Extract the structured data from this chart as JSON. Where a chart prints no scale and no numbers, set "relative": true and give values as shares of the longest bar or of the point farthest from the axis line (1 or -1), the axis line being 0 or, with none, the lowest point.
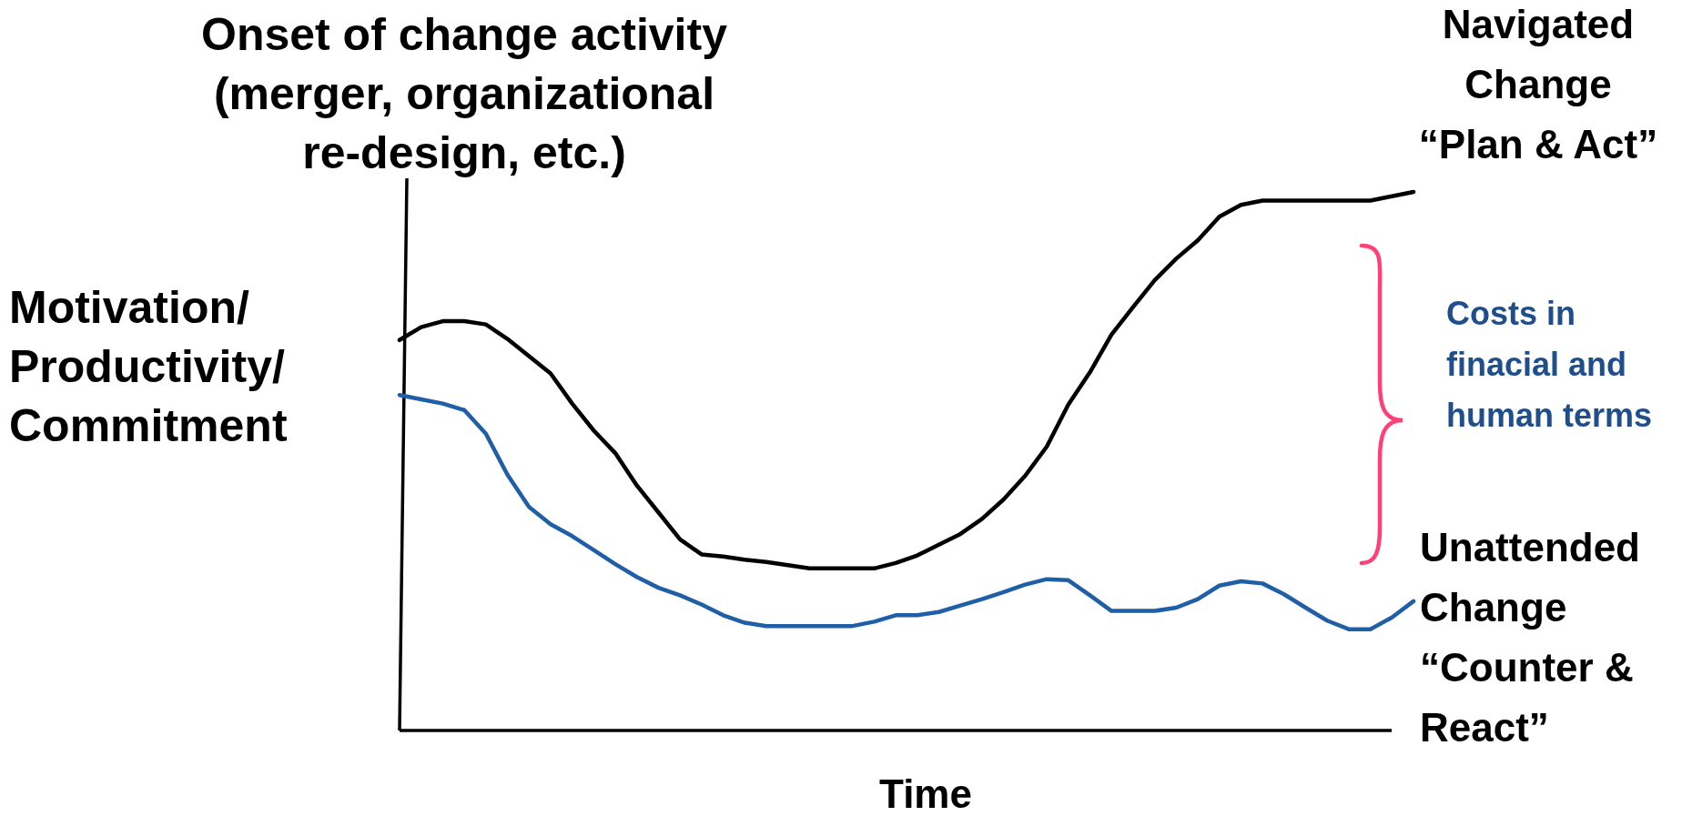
{
  "chart_data": {
    "type": "line",
    "relative": true,
    "xlabel": "Time",
    "ylabel": "Motivation/\nProductivity/\nCommitment",
    "annotations": [
      "Onset of change activity\n(merger, organizational\nre-design, etc.)",
      "Costs in\nfinacial and\nhuman terms"
    ],
    "categories": [
      null,
      null,
      null,
      null,
      null,
      null,
      null,
      null,
      null,
      null,
      null,
      null,
      null,
      null,
      null,
      null,
      null,
      null,
      null,
      null,
      null,
      null,
      null,
      null,
      null,
      null,
      null,
      null,
      null,
      null,
      null,
      null,
      null,
      null,
      null,
      null,
      null,
      null,
      null,
      null,
      null,
      null,
      null,
      null,
      null,
      null,
      null,
      null
    ],
    "series": [
      {
        "name": "Navigated\nChange\n“Plan & Act”",
        "color": "#000000",
        "values": [
          0.725,
          0.749,
          0.76,
          0.76,
          0.754,
          0.727,
          0.695,
          0.663,
          0.607,
          0.557,
          0.515,
          0.455,
          0.405,
          0.355,
          0.327,
          0.323,
          0.317,
          0.313,
          0.307,
          0.301,
          0.301,
          0.301,
          0.301,
          0.311,
          0.325,
          0.345,
          0.365,
          0.393,
          0.429,
          0.473,
          0.527,
          0.605,
          0.665,
          0.735,
          0.786,
          0.836,
          0.876,
          0.91,
          0.954,
          0.976,
          0.984,
          0.984,
          0.984,
          0.984,
          0.984,
          0.984,
          0.992,
          1.0
        ]
      },
      {
        "name": "Unattended\nChange\n“Counter &\nReact”",
        "color": "#1f5fa8",
        "values": [
          0.623,
          0.615,
          0.607,
          0.595,
          0.551,
          0.475,
          0.415,
          0.383,
          0.361,
          0.335,
          0.309,
          0.285,
          0.265,
          0.251,
          0.234,
          0.214,
          0.2,
          0.194,
          0.194,
          0.194,
          0.194,
          0.194,
          0.202,
          0.214,
          0.214,
          0.22,
          0.232,
          0.244,
          0.257,
          0.271,
          0.281,
          0.279,
          0.251,
          0.222,
          0.222,
          0.222,
          0.228,
          0.244,
          0.269,
          0.277,
          0.273,
          0.253,
          0.228,
          0.204,
          0.188,
          0.188,
          0.21,
          0.24
        ]
      }
    ]
  }
}
